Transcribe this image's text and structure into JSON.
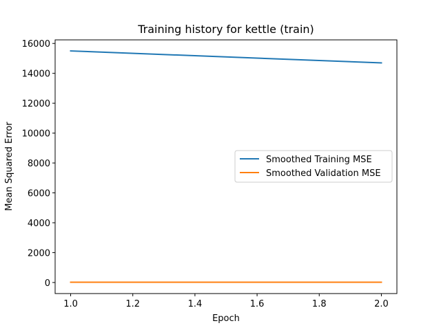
{
  "chart_data": {
    "type": "line",
    "title": "Training history for kettle (train)",
    "xlabel": "Epoch",
    "ylabel": "Mean Squared Error",
    "x": [
      1.0,
      2.0
    ],
    "xlim": [
      0.95,
      2.05
    ],
    "ylim": [
      -740,
      16240
    ],
    "xticks": [
      1.0,
      1.2,
      1.4,
      1.6,
      1.8,
      2.0
    ],
    "xtick_labels": [
      "1.0",
      "1.2",
      "1.4",
      "1.6",
      "1.8",
      "2.0"
    ],
    "yticks": [
      0,
      2000,
      4000,
      6000,
      8000,
      10000,
      12000,
      14000,
      16000
    ],
    "ytick_labels": [
      "0",
      "2000",
      "4000",
      "6000",
      "8000",
      "10000",
      "12000",
      "14000",
      "16000"
    ],
    "grid": false,
    "legend_position": "center-right",
    "series": [
      {
        "name": "Smoothed Training MSE",
        "color": "#1f77b4",
        "values": [
          15500,
          14700
        ]
      },
      {
        "name": "Smoothed Validation MSE",
        "color": "#ff7f0e",
        "values": [
          20,
          20
        ]
      }
    ]
  }
}
